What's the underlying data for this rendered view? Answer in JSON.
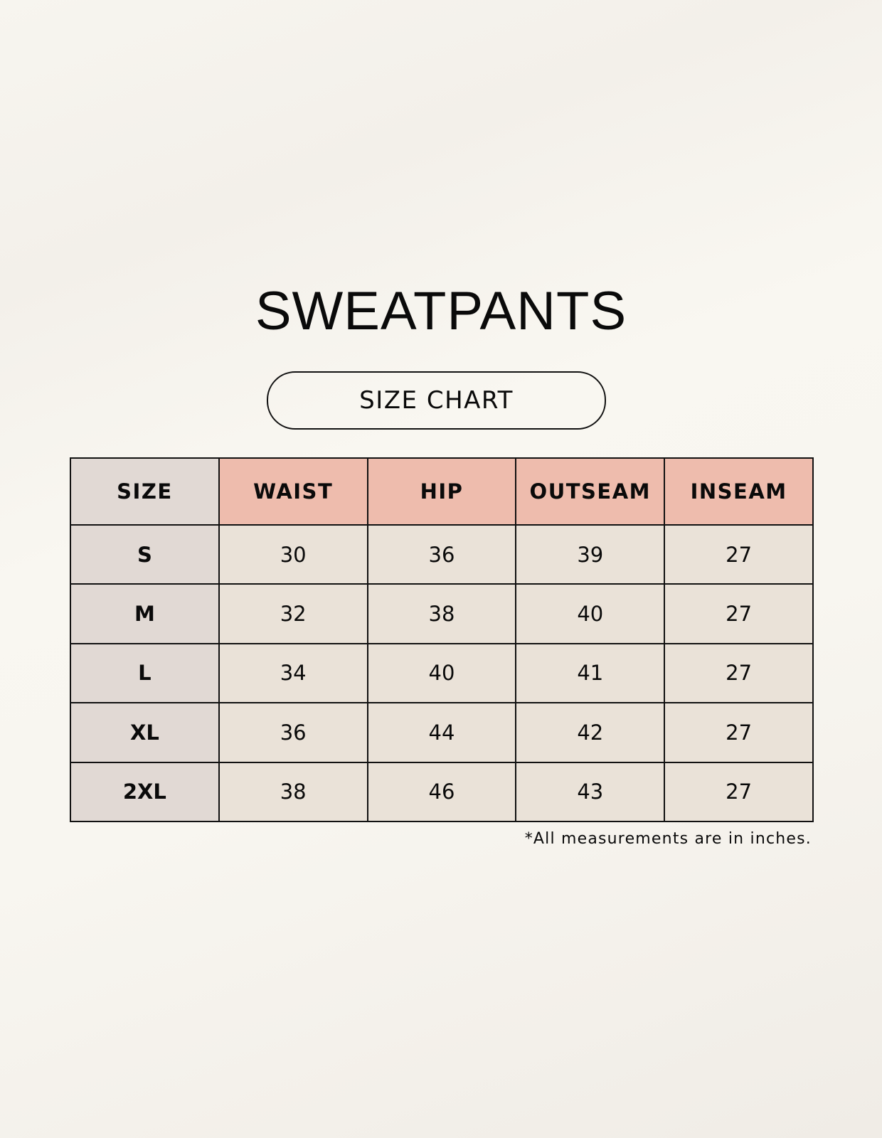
{
  "title": "SWEATPANTS",
  "subtitle": "SIZE CHART",
  "table": {
    "headers": [
      "SIZE",
      "WAIST",
      "HIP",
      "OUTSEAM",
      "INSEAM"
    ],
    "rows": [
      [
        "S",
        "30",
        "36",
        "39",
        "27"
      ],
      [
        "M",
        "32",
        "38",
        "40",
        "27"
      ],
      [
        "L",
        "34",
        "40",
        "41",
        "27"
      ],
      [
        "XL",
        "36",
        "44",
        "42",
        "27"
      ],
      [
        "2XL",
        "38",
        "46",
        "43",
        "27"
      ]
    ]
  },
  "footnote": "*All measurements are in inches.",
  "colors": {
    "header_accent": "#eebcad",
    "size_column": "#e1d9d4",
    "cell": "#eae2d8"
  }
}
